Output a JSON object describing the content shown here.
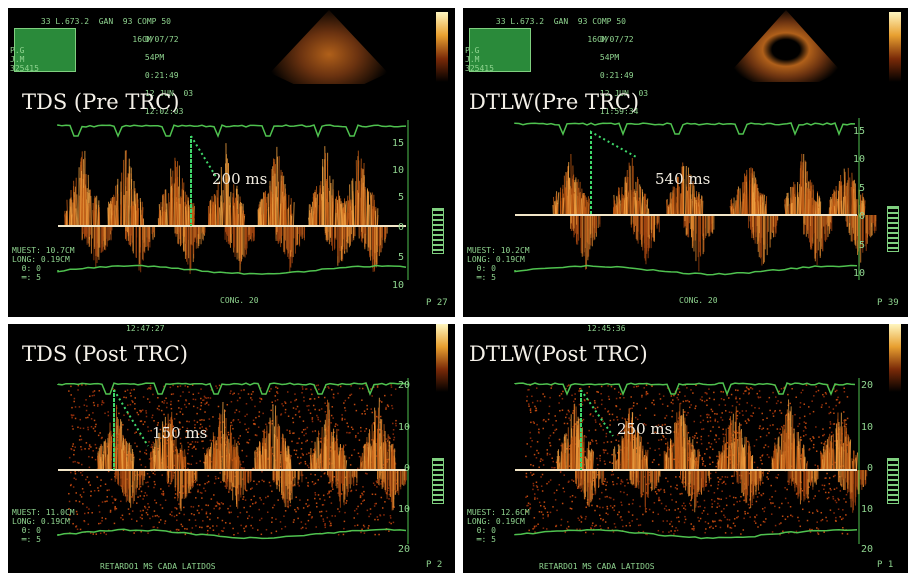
{
  "panels": [
    {
      "title": "TDS (Pre TRC)",
      "measurement": "200 ms",
      "header": {
        "line1": "33 L.673.2  GAN  93 COMP 50",
        "line2": "CLINICA            16CM",
        "time1": "0/07/72",
        "time2": "54PM",
        "time3": "0:21:49",
        "date": "12 JUN  03",
        "time4": "12:02:03",
        "left_ids": "P.G\nJ.M\n325415"
      },
      "info": "MUEST: 10.7CM\nLONG: 0.19CM\n  θ: 0\n  ═: 5",
      "footer": "CONG. 20",
      "page": "P 27",
      "ticks": [
        "15",
        "10",
        "5",
        "0",
        "5",
        "10"
      ]
    },
    {
      "title": "DTLW(Pre TRC)",
      "measurement": "540 ms",
      "header": {
        "line1": "33 L.673.2  GAN  93 COMP 50",
        "line2": "CLINICA            16CM",
        "time1": "0/07/72",
        "time2": "54PM",
        "time3": "0:21:49",
        "date": "12 JUN  03",
        "time4": "11:59:34",
        "left_ids": "P.G\nJ.M\n325415"
      },
      "info": "MUEST: 10.2CM\nLONG: 0.19CM\n  θ: 0\n  ═: 5",
      "footer": "CONG. 20",
      "page": "P 39",
      "ticks": [
        "15",
        "10",
        "5",
        "0",
        "5",
        "10"
      ]
    },
    {
      "title": "TDS (Post TRC)",
      "measurement": "150 ms",
      "header": {
        "time4": "12:47:27"
      },
      "info": "MUEST: 11.0CM\nLONG: 0.19CM\n  θ: 0\n  ═: 5",
      "footer": "RETARDO1       MS CADA     LATIDOS",
      "page": "P 2",
      "ticks": [
        "20",
        "10",
        "0",
        "10",
        "20"
      ]
    },
    {
      "title": "DTLW(Post TRC)",
      "measurement": "250 ms",
      "header": {
        "time4": "12:45:36"
      },
      "info": "MUEST: 12.6CM\nLONG: 0.19CM\n  θ: 0\n  ═: 5",
      "footer": "RETARDO1       MS CADA     LATIDOS",
      "page": "P 1",
      "ticks": [
        "20",
        "10",
        "0",
        "10",
        "20"
      ]
    }
  ],
  "colors": {
    "doppler": "#e07a1a",
    "trace": "#4fc24f",
    "baseline": "#f2e6c8",
    "text": "#8fd48f"
  }
}
